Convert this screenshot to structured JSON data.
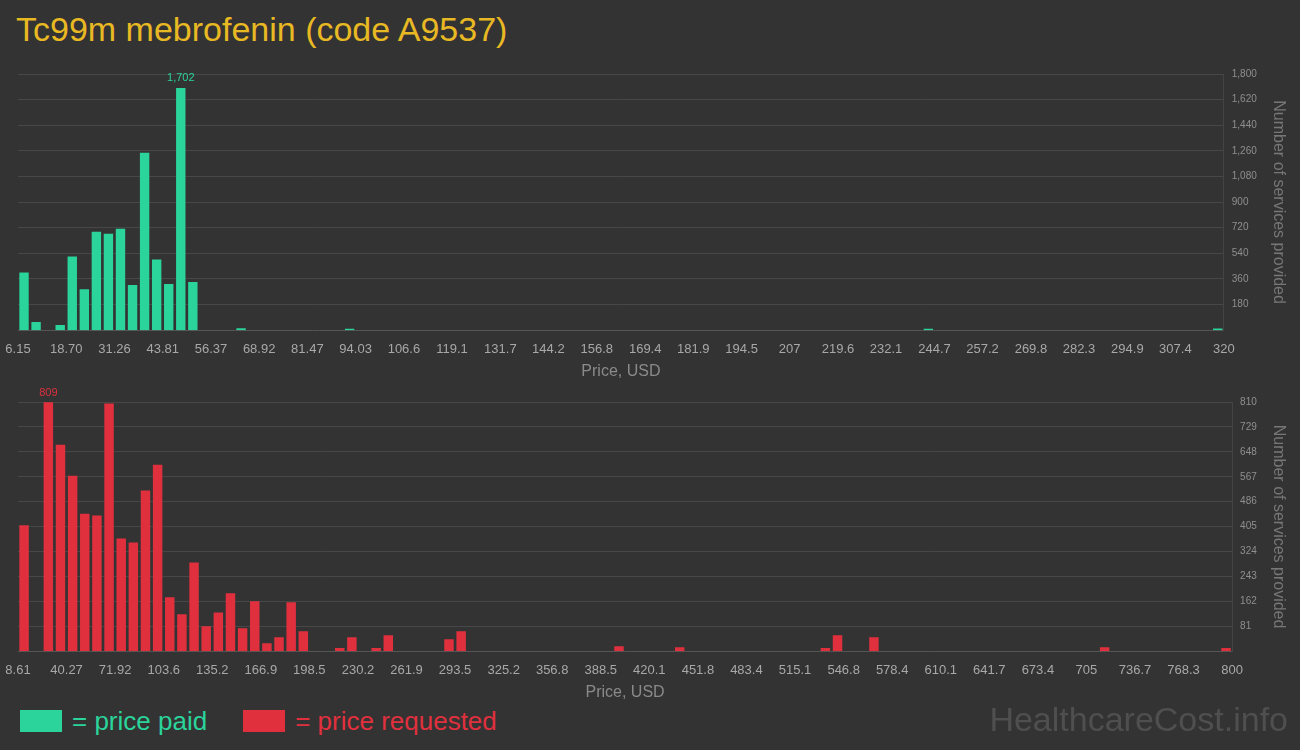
{
  "title": "Tc99m mebrofenin (code A9537)",
  "watermark": "HealthcareCost.info",
  "chart_data": [
    {
      "type": "histogram",
      "xlabel": "Price, USD",
      "ylabel": "Number of services provided",
      "bins": [
        6.15,
        9.2885,
        12.427,
        15.5655,
        18.704,
        21.8425,
        24.981,
        28.1195,
        31.258,
        34.3965,
        37.535,
        40.6735,
        43.812,
        46.9505,
        50.089,
        53.2275,
        56.366,
        59.5045,
        62.643,
        65.7815,
        68.92,
        72.0585,
        75.197,
        78.3355,
        81.474,
        84.6125,
        87.751,
        90.8895,
        94.028,
        97.1665,
        100.305,
        103.4435,
        106.582,
        109.7205,
        112.859,
        115.9975,
        119.136,
        122.2745,
        125.413,
        128.5515,
        131.69,
        134.8285,
        137.967,
        141.1055,
        144.244,
        147.3825,
        150.521,
        153.6595,
        156.798,
        159.9365,
        163.075,
        166.2135,
        169.352,
        172.4905,
        175.629,
        178.7675,
        181.906,
        185.0445,
        188.183,
        191.3215,
        194.46,
        197.5985,
        200.737,
        203.8755,
        207.014,
        210.1525,
        213.291,
        216.4295,
        219.568,
        222.7065,
        225.845,
        228.9835,
        232.122,
        235.2605,
        238.399,
        241.5375,
        244.676,
        247.8145,
        250.953,
        254.0915,
        257.23,
        260.3685,
        263.507,
        266.6455,
        269.784,
        272.9225,
        276.061,
        279.1995,
        282.338,
        285.4765,
        288.615,
        291.7535,
        294.892,
        298.0305,
        301.169,
        304.3075,
        307.446,
        310.5845,
        313.723,
        316.8615,
        320
      ],
      "series": [
        {
          "name": "= price paid",
          "color": "#2ad49b",
          "values": [
            405,
            58,
            0,
            36,
            518,
            288,
            691,
            677,
            713,
            317,
            1246,
            497,
            324,
            1702,
            338,
            0,
            0,
            0,
            14,
            0,
            0,
            0,
            0,
            0,
            0,
            0,
            0,
            10,
            0,
            0,
            0,
            0,
            0,
            0,
            0,
            0,
            0,
            0,
            0,
            0,
            0,
            0,
            0,
            0,
            0,
            0,
            0,
            0,
            0,
            0,
            0,
            0,
            0,
            0,
            0,
            0,
            0,
            0,
            0,
            0,
            0,
            0,
            0,
            0,
            0,
            0,
            0,
            0,
            0,
            0,
            0,
            0,
            0,
            0,
            0,
            10,
            0,
            0,
            0,
            0,
            0,
            0,
            0,
            0,
            0,
            0,
            0,
            0,
            0,
            0,
            0,
            0,
            0,
            0,
            0,
            0,
            0,
            0,
            0,
            12
          ]
        }
      ],
      "xlim": [
        6.15,
        320
      ],
      "xticks": [
        6.15,
        {
          "value": 18.7,
          "label": "18.70"
        },
        31.26,
        43.81,
        56.37,
        68.92,
        81.47,
        94.03,
        106.6,
        119.1,
        131.7,
        144.2,
        156.8,
        169.4,
        181.9,
        194.5,
        207,
        219.6,
        232.1,
        244.7,
        257.2,
        269.8,
        282.3,
        294.9,
        307.4,
        320
      ],
      "ylim": [
        0,
        1800
      ],
      "yticks": [
        180,
        360,
        540,
        720,
        900,
        {
          "value": 1080,
          "label": "1,080"
        },
        {
          "value": 1260,
          "label": "1,260"
        },
        {
          "value": 1440,
          "label": "1,440"
        },
        {
          "value": 1620,
          "label": "1,620"
        },
        {
          "value": 1800,
          "label": "1,800"
        }
      ],
      "grid": true,
      "legend": "bottom left",
      "annotations": [
        {
          "x": 48.52,
          "y": 1702,
          "text": "1,702"
        }
      ]
    },
    {
      "type": "histogram",
      "xlabel": "Price, USD",
      "ylabel": "Number of services provided",
      "bins": [
        8.61,
        16.5239,
        24.4378,
        32.3517,
        40.2656,
        48.1795,
        56.0934,
        64.0073,
        71.9212,
        79.8351,
        87.749,
        95.6629,
        103.5768,
        111.4907,
        119.4046,
        127.3185,
        135.2324,
        143.1463,
        151.0602,
        158.9741,
        166.888,
        174.8019,
        182.7158,
        190.6297,
        198.5436,
        206.4575,
        214.3714,
        222.2853,
        230.1992,
        238.1131,
        246.027,
        253.9409,
        261.8548,
        269.7687,
        277.6826,
        285.5965,
        293.5104,
        301.4243,
        309.3382,
        317.2521,
        325.166,
        333.0799,
        340.9938,
        348.9077,
        356.8216,
        364.7355,
        372.6494,
        380.5633,
        388.4772,
        396.3911,
        404.305,
        412.2189,
        420.1328,
        428.0467,
        435.9606,
        443.8745,
        451.7884,
        459.7023,
        467.6162,
        475.5301,
        483.444,
        491.3579,
        499.2718,
        507.1857,
        515.0996,
        523.0135,
        530.9274,
        538.8413,
        546.7552,
        554.6691,
        562.583,
        570.4969,
        578.4108,
        586.3247,
        594.2386,
        602.1525,
        610.0664,
        617.9803,
        625.8942,
        633.8081,
        641.722,
        649.6359,
        657.5498,
        665.4637,
        673.3776,
        681.2915,
        689.2054,
        697.1193,
        705.0332,
        712.9471,
        720.861,
        728.7749,
        736.6888,
        744.6027,
        752.5166,
        760.4305,
        768.3444,
        776.2583,
        784.1722,
        792.0861,
        800
      ],
      "series": [
        {
          "name": "= price requested",
          "color": "#e0303e",
          "values": [
            409,
            0,
            809,
            671,
            570,
            447,
            441,
            805,
            366,
            353,
            522,
            606,
            175,
            120,
            288,
            81,
            126,
            188,
            75,
            162,
            26,
            45,
            159,
            65,
            0,
            0,
            10,
            45,
            0,
            10,
            52,
            0,
            0,
            0,
            0,
            39,
            65,
            0,
            0,
            0,
            0,
            0,
            0,
            0,
            0,
            0,
            0,
            0,
            0,
            16,
            0,
            0,
            0,
            0,
            13,
            0,
            0,
            0,
            0,
            0,
            0,
            0,
            0,
            0,
            0,
            0,
            10,
            52,
            0,
            0,
            45,
            0,
            0,
            0,
            0,
            0,
            0,
            0,
            0,
            0,
            0,
            0,
            0,
            0,
            0,
            0,
            0,
            0,
            0,
            13,
            0,
            0,
            0,
            0,
            0,
            0,
            0,
            0,
            0,
            10
          ]
        }
      ],
      "xlim": [
        8.61,
        800
      ],
      "xticks": [
        8.61,
        40.27,
        71.92,
        103.6,
        135.2,
        166.9,
        198.5,
        230.2,
        261.9,
        293.5,
        325.2,
        356.8,
        388.5,
        420.1,
        451.8,
        483.4,
        515.1,
        546.8,
        578.4,
        610.1,
        641.7,
        673.4,
        705,
        736.7,
        768.3,
        800
      ],
      "ylim": [
        0,
        810
      ],
      "yticks": [
        81,
        162,
        243,
        324,
        405,
        486,
        567,
        648,
        729,
        810
      ],
      "grid": true,
      "legend": "bottom left",
      "annotations": [
        {
          "x": 28.39,
          "y": 809,
          "text": "809"
        }
      ]
    }
  ]
}
